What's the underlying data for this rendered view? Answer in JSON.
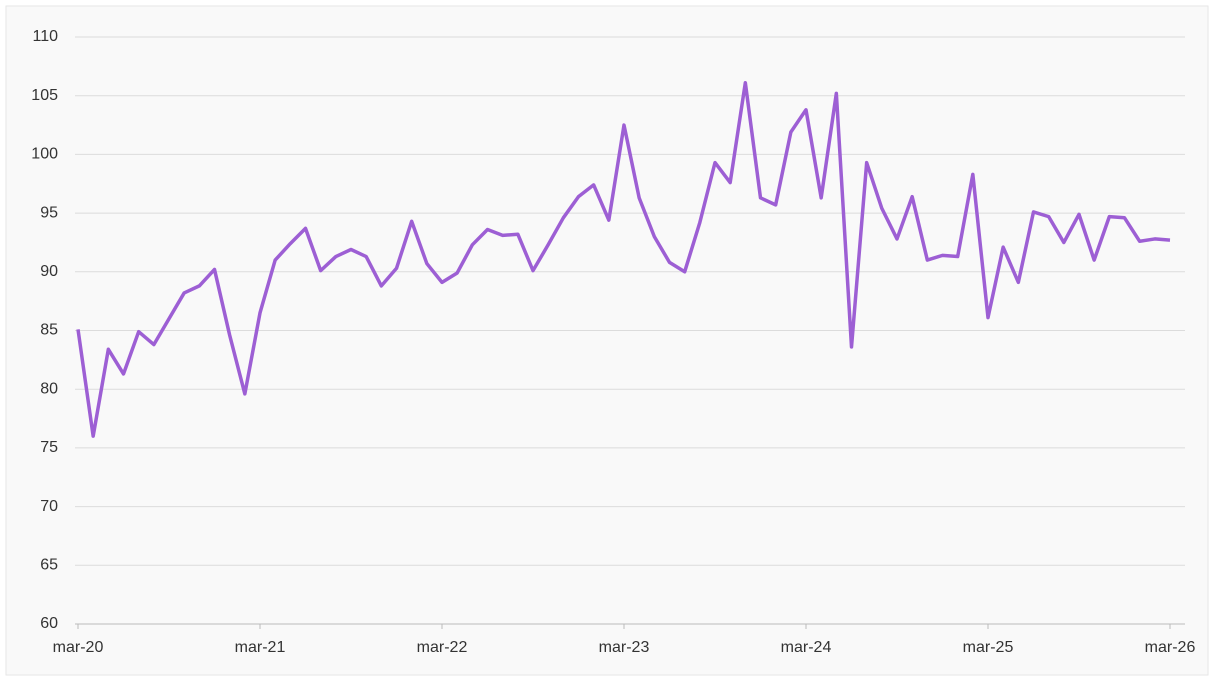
{
  "chart_data": {
    "type": "line",
    "categories": [
      "mar-20",
      null,
      null,
      null,
      null,
      null,
      null,
      null,
      null,
      null,
      null,
      null,
      "mar-21",
      null,
      null,
      null,
      null,
      null,
      null,
      null,
      null,
      null,
      null,
      null,
      "mar-22",
      null,
      null,
      null,
      null,
      null,
      null,
      null,
      null,
      null,
      null,
      null,
      "mar-23",
      null,
      null,
      null,
      null,
      null,
      null,
      null,
      null,
      null,
      null,
      null,
      "mar-24",
      null,
      null,
      null,
      null,
      null,
      null,
      null,
      null,
      null,
      null,
      null,
      "mar-25",
      null,
      null,
      null,
      null,
      null,
      null,
      null,
      null,
      null,
      null,
      null,
      "mar-26"
    ],
    "series": [
      {
        "color": "#9d5fd4",
        "values": [
          85.1,
          76,
          83.4,
          81.3,
          84.9,
          83.8,
          86,
          88.2,
          88.8,
          90.2,
          84.6,
          79.6,
          86.5,
          91,
          92.4,
          93.7,
          90.1,
          91.3,
          91.9,
          91.3,
          88.8,
          90.3,
          94.3,
          90.7,
          89.1,
          89.9,
          92.3,
          93.6,
          93.1,
          93.2,
          90.1,
          92.3,
          94.6,
          96.4,
          97.4,
          94.4,
          102.5,
          96.3,
          93,
          90.8,
          90,
          94.2,
          99.3,
          97.6,
          106.1,
          96.3,
          95.7,
          101.9,
          103.8,
          96.3,
          105.2,
          83.6,
          99.3,
          95.4,
          92.8,
          96.4,
          91,
          91.4,
          91.3,
          98.3,
          86.1,
          92.1,
          89.1,
          95.1,
          94.7,
          92.5,
          94.9,
          91,
          94.7,
          94.6,
          92.6,
          92.8,
          92.7
        ]
      }
    ],
    "ylim": [
      60,
      110
    ],
    "yticks": [
      60,
      65,
      70,
      75,
      80,
      85,
      90,
      95,
      100,
      105,
      110
    ],
    "grid": true
  }
}
